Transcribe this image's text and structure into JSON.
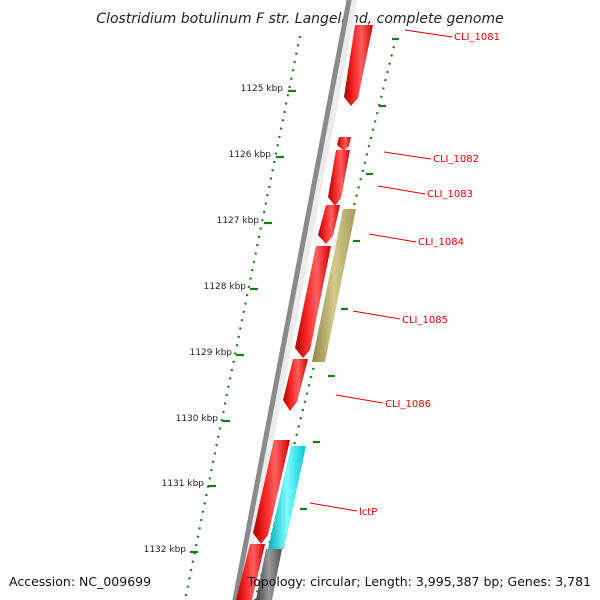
{
  "title": "Clostridium botulinum F str. Langeland, complete genome",
  "footer": {
    "accession": "Accession: NC_009699",
    "topology": "Topology: circular; Length: 3,995,387 bp; Genes: 3,781"
  },
  "ticks": [
    "1125 kbp",
    "1126 kbp",
    "1127 kbp",
    "1128 kbp",
    "1129 kbp",
    "1130 kbp",
    "1131 kbp",
    "1132 kbp"
  ],
  "genes": [
    {
      "label": "CLI_1081",
      "color": "#ff0000"
    },
    {
      "label": "CLI_1082",
      "color": "#ff0000"
    },
    {
      "label": "CLI_1083",
      "color": "#ff0000"
    },
    {
      "label": "CLI_1084",
      "color": "#ff0000"
    },
    {
      "label": "CLI_1085",
      "color": "#ff0000"
    },
    {
      "label": "CLI_1086",
      "color": "#ff0000"
    },
    {
      "label": "lctP",
      "color": "#ff0000"
    }
  ],
  "feature_colors": {
    "forward_gene": "#ff0000",
    "reverse_gene": "#b8ae6a",
    "reverse_gene_2": "#00e5ee",
    "other": "#666666",
    "backbone": "#808080",
    "ticks": "#1a7a1a"
  }
}
